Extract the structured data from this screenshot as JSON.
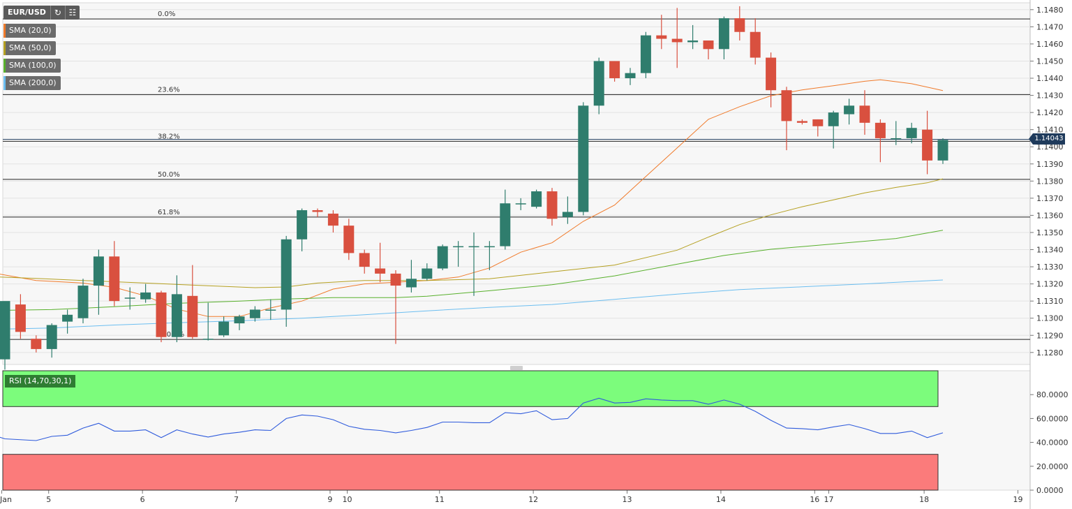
{
  "symbol": "EUR/USD",
  "toolbar": {
    "refresh_icon": "refresh-icon",
    "calendar_icon": "calendar-icon"
  },
  "indicators": [
    {
      "label": "SMA (20,0)",
      "color": "#f07a2a"
    },
    {
      "label": "SMA (50,0)",
      "color": "#b5a021"
    },
    {
      "label": "SMA (100,0)",
      "color": "#58b02c"
    },
    {
      "label": "SMA (200,0)",
      "color": "#6cbef0"
    }
  ],
  "current_price": "1.14043",
  "colors": {
    "up": "#2f7d6d",
    "down": "#d9503f",
    "rsi": "#2f5bdc",
    "overbought": "#7cfc7c",
    "oversold": "#fb7b7b"
  },
  "chart_data": [
    {
      "type": "candlestick",
      "ylim": [
        1.1273,
        1.1484
      ],
      "y_ticks": [
        "1.1480",
        "1.1470",
        "1.1460",
        "1.1450",
        "1.1440",
        "1.1430",
        "1.1420",
        "1.1410",
        "1.1400",
        "1.1390",
        "1.1380",
        "1.1370",
        "1.1360",
        "1.1350",
        "1.1340",
        "1.1330",
        "1.1320",
        "1.1310",
        "1.1300",
        "1.1290",
        "1.1280"
      ],
      "x_ticks": [
        {
          "label": "Jan",
          "i": -0.2
        },
        {
          "label": "5",
          "i": 2.8
        },
        {
          "label": "6",
          "i": 8.8
        },
        {
          "label": "7",
          "i": 14.8
        },
        {
          "label": "9",
          "i": 20.8
        },
        {
          "label": "10",
          "i": 21.9
        },
        {
          "label": "11",
          "i": 27.8
        },
        {
          "label": "12",
          "i": 33.8
        },
        {
          "label": "13",
          "i": 39.8
        },
        {
          "label": "14",
          "i": 45.8
        },
        {
          "label": "16",
          "i": 51.8
        },
        {
          "label": "17",
          "i": 52.7
        },
        {
          "label": "18",
          "i": 58.8
        },
        {
          "label": "19",
          "i": 64.8
        }
      ],
      "candles": [
        [
          1.1276,
          1.131,
          1.127,
          1.1308
        ],
        [
          1.1308,
          1.1292,
          1.1288,
          1.1314
        ],
        [
          1.1288,
          1.1282,
          1.128,
          1.129
        ],
        [
          1.1282,
          1.1296,
          1.1277,
          1.1297
        ],
        [
          1.1298,
          1.1302,
          1.1291,
          1.1305
        ],
        [
          1.13,
          1.1319,
          1.1297,
          1.1323
        ],
        [
          1.1319,
          1.1336,
          1.1302,
          1.134
        ],
        [
          1.1336,
          1.131,
          1.1307,
          1.1345
        ],
        [
          1.1312,
          1.1312,
          1.1305,
          1.1318
        ],
        [
          1.1311,
          1.1315,
          1.1309,
          1.132
        ],
        [
          1.1315,
          1.1289,
          1.1286,
          1.1316
        ],
        [
          1.1289,
          1.1314,
          1.1286,
          1.1325
        ],
        [
          1.1313,
          1.1289,
          1.1288,
          1.1331
        ],
        [
          1.1288,
          1.1288,
          1.1287,
          1.1309
        ],
        [
          1.129,
          1.1298,
          1.1289,
          1.1301
        ],
        [
          1.1297,
          1.1301,
          1.1293,
          1.1302
        ],
        [
          1.13,
          1.1305,
          1.1298,
          1.1307
        ],
        [
          1.1305,
          1.1305,
          1.1299,
          1.1311
        ],
        [
          1.1305,
          1.1346,
          1.1295,
          1.1348
        ],
        [
          1.1346,
          1.1363,
          1.1339,
          1.1364
        ],
        [
          1.1363,
          1.1362,
          1.1359,
          1.1364
        ],
        [
          1.1361,
          1.1354,
          1.135,
          1.1363
        ],
        [
          1.1354,
          1.1338,
          1.1334,
          1.1358
        ],
        [
          1.1338,
          1.133,
          1.1326,
          1.134
        ],
        [
          1.1329,
          1.1326,
          1.1321,
          1.1344
        ],
        [
          1.1326,
          1.1319,
          1.1285,
          1.1328
        ],
        [
          1.1318,
          1.1323,
          1.1315,
          1.1334
        ],
        [
          1.1323,
          1.1329,
          1.1322,
          1.1332
        ],
        [
          1.1329,
          1.1342,
          1.1328,
          1.1343
        ],
        [
          1.1342,
          1.1342,
          1.133,
          1.1345
        ],
        [
          1.1342,
          1.1342,
          1.1313,
          1.135
        ],
        [
          1.1342,
          1.1342,
          1.1328,
          1.1345
        ],
        [
          1.1342,
          1.1367,
          1.134,
          1.1375
        ],
        [
          1.1367,
          1.1367,
          1.1363,
          1.137
        ],
        [
          1.1365,
          1.1374,
          1.1364,
          1.1375
        ],
        [
          1.1374,
          1.1358,
          1.1354,
          1.1376
        ],
        [
          1.1359,
          1.1362,
          1.1355,
          1.1371
        ],
        [
          1.1362,
          1.1424,
          1.136,
          1.1426
        ],
        [
          1.1424,
          1.145,
          1.1419,
          1.1452
        ],
        [
          1.145,
          1.144,
          1.1438,
          1.145
        ],
        [
          1.144,
          1.1443,
          1.1436,
          1.1446
        ],
        [
          1.1443,
          1.1465,
          1.144,
          1.1467
        ],
        [
          1.1465,
          1.1463,
          1.1457,
          1.1477
        ],
        [
          1.1463,
          1.1461,
          1.1446,
          1.1481
        ],
        [
          1.1461,
          1.1462,
          1.1457,
          1.1471
        ],
        [
          1.1462,
          1.1457,
          1.1451,
          1.1462
        ],
        [
          1.1457,
          1.1475,
          1.1451,
          1.1476
        ],
        [
          1.1475,
          1.1467,
          1.1462,
          1.1482
        ],
        [
          1.1467,
          1.1452,
          1.1448,
          1.1475
        ],
        [
          1.1452,
          1.1433,
          1.1423,
          1.1455
        ],
        [
          1.1433,
          1.1415,
          1.1398,
          1.1435
        ],
        [
          1.1415,
          1.1414,
          1.1413,
          1.1416
        ],
        [
          1.1416,
          1.1412,
          1.1406,
          1.1416
        ],
        [
          1.1412,
          1.142,
          1.1399,
          1.1421
        ],
        [
          1.1419,
          1.1424,
          1.1413,
          1.1428
        ],
        [
          1.1424,
          1.1414,
          1.1407,
          1.1433
        ],
        [
          1.1414,
          1.1405,
          1.1391,
          1.1416
        ],
        [
          1.1405,
          1.1405,
          1.1401,
          1.1415
        ],
        [
          1.1405,
          1.1411,
          1.1402,
          1.1414
        ],
        [
          1.141,
          1.1392,
          1.1384,
          1.1421
        ],
        [
          1.1392,
          1.1404,
          1.139,
          1.1405
        ]
      ],
      "sma": [
        {
          "name": "SMA (20,0)",
          "color": "#f07a2a",
          "points": [
            [
              -1,
              1.13268
            ],
            [
              2,
              1.1322
            ],
            [
              5,
              1.13205
            ],
            [
              7,
              1.1318
            ],
            [
              9,
              1.1313
            ],
            [
              11,
              1.13053
            ],
            [
              13,
              1.1301
            ],
            [
              15,
              1.1301
            ],
            [
              17,
              1.1306
            ],
            [
              19,
              1.131
            ],
            [
              21,
              1.1317
            ],
            [
              23,
              1.132
            ],
            [
              25,
              1.1321
            ],
            [
              27,
              1.1322
            ],
            [
              29,
              1.1324
            ],
            [
              31,
              1.13293
            ],
            [
              33,
              1.13385
            ],
            [
              35,
              1.1344
            ],
            [
              37,
              1.13565
            ],
            [
              39,
              1.1366
            ],
            [
              41,
              1.13827
            ],
            [
              43,
              1.13993
            ],
            [
              45,
              1.1416
            ],
            [
              47,
              1.14234
            ],
            [
              49,
              1.14298
            ],
            [
              51,
              1.14332
            ],
            [
              53,
              1.14356
            ],
            [
              55,
              1.14382
            ],
            [
              56,
              1.14391
            ],
            [
              58,
              1.14368
            ],
            [
              60,
              1.14328
            ]
          ]
        },
        {
          "name": "SMA (50,0)",
          "color": "#b5a021",
          "points": [
            [
              -1,
              1.13243
            ],
            [
              2,
              1.13232
            ],
            [
              5,
              1.1322
            ],
            [
              9,
              1.13205
            ],
            [
              13,
              1.13189
            ],
            [
              16,
              1.13178
            ],
            [
              18,
              1.13182
            ],
            [
              20,
              1.13205
            ],
            [
              23,
              1.1322
            ],
            [
              27,
              1.1322
            ],
            [
              31,
              1.1323
            ],
            [
              35,
              1.1327
            ],
            [
              39,
              1.1331
            ],
            [
              43,
              1.13397
            ],
            [
              45,
              1.13473
            ],
            [
              47,
              1.13546
            ],
            [
              49,
              1.13603
            ],
            [
              51,
              1.1365
            ],
            [
              53,
              1.1369
            ],
            [
              55,
              1.13731
            ],
            [
              57,
              1.13763
            ],
            [
              59,
              1.1379
            ],
            [
              60,
              1.13813
            ]
          ]
        },
        {
          "name": "SMA (100,0)",
          "color": "#58b02c",
          "points": [
            [
              -1,
              1.13045
            ],
            [
              3,
              1.1305
            ],
            [
              7,
              1.13067
            ],
            [
              11,
              1.13087
            ],
            [
              15,
              1.131
            ],
            [
              18,
              1.13112
            ],
            [
              21,
              1.1312
            ],
            [
              25,
              1.1312
            ],
            [
              27,
              1.13128
            ],
            [
              31,
              1.1316
            ],
            [
              35,
              1.13195
            ],
            [
              39,
              1.13247
            ],
            [
              43,
              1.13315
            ],
            [
              46,
              1.13366
            ],
            [
              49,
              1.13402
            ],
            [
              53,
              1.13433
            ],
            [
              57,
              1.13465
            ],
            [
              60,
              1.13513
            ]
          ]
        },
        {
          "name": "SMA (200,0)",
          "color": "#6cbef0",
          "points": [
            [
              -1,
              1.12935
            ],
            [
              3,
              1.12943
            ],
            [
              7,
              1.1296
            ],
            [
              11,
              1.12973
            ],
            [
              15,
              1.12985
            ],
            [
              19,
              1.13
            ],
            [
              23,
              1.1302
            ],
            [
              27,
              1.13043
            ],
            [
              31,
              1.13063
            ],
            [
              35,
              1.1308
            ],
            [
              39,
              1.1311
            ],
            [
              43,
              1.1314
            ],
            [
              47,
              1.13167
            ],
            [
              51,
              1.13183
            ],
            [
              55,
              1.132
            ],
            [
              60,
              1.13223
            ]
          ]
        }
      ],
      "fibonacci": [
        {
          "label": "0.0%",
          "price": 1.14746
        },
        {
          "label": "23.6%",
          "price": 1.14305
        },
        {
          "label": "38.2%",
          "price": 1.14032
        },
        {
          "label": "50.0%",
          "price": 1.1381
        },
        {
          "label": "61.8%",
          "price": 1.1359
        },
        {
          "label": "100.0%",
          "price": 1.12876
        }
      ]
    },
    {
      "type": "line",
      "title": "RSI (14,70,30,1)",
      "ylim": [
        0,
        100
      ],
      "y_ticks": [
        "80.0000",
        "60.0000",
        "40.0000",
        "20.0000",
        "0.0000"
      ],
      "overbought": 70,
      "oversold": 30,
      "points": [
        [
          -1,
          47
        ],
        [
          0,
          43
        ],
        [
          2,
          41.5
        ],
        [
          3,
          45
        ],
        [
          4,
          46
        ],
        [
          5,
          52
        ],
        [
          6,
          56
        ],
        [
          7,
          49.5
        ],
        [
          8,
          49.5
        ],
        [
          9,
          50.5
        ],
        [
          10,
          44
        ],
        [
          11,
          50.5
        ],
        [
          12,
          47
        ],
        [
          13,
          44.5
        ],
        [
          14,
          47
        ],
        [
          15,
          48.5
        ],
        [
          16,
          50.5
        ],
        [
          17,
          50
        ],
        [
          18,
          60
        ],
        [
          19,
          63
        ],
        [
          20,
          62
        ],
        [
          21,
          59
        ],
        [
          22,
          53.5
        ],
        [
          23,
          51
        ],
        [
          24,
          50
        ],
        [
          25,
          48
        ],
        [
          26,
          50
        ],
        [
          27,
          52.5
        ],
        [
          28,
          57
        ],
        [
          29,
          57
        ],
        [
          30,
          56.5
        ],
        [
          31,
          56.5
        ],
        [
          32,
          65
        ],
        [
          33,
          64
        ],
        [
          34,
          66.5
        ],
        [
          35,
          59
        ],
        [
          36,
          60
        ],
        [
          37,
          73
        ],
        [
          38,
          77
        ],
        [
          39,
          73
        ],
        [
          40,
          73.5
        ],
        [
          41,
          76.5
        ],
        [
          42,
          75.5
        ],
        [
          43,
          75
        ],
        [
          44,
          75
        ],
        [
          45,
          72
        ],
        [
          46,
          75.5
        ],
        [
          47,
          72
        ],
        [
          48,
          66
        ],
        [
          49,
          58.5
        ],
        [
          50,
          52
        ],
        [
          51,
          51.5
        ],
        [
          52,
          50.5
        ],
        [
          53,
          53
        ],
        [
          54,
          55
        ],
        [
          55,
          51.5
        ],
        [
          56,
          47.5
        ],
        [
          57,
          47.5
        ],
        [
          58,
          49.5
        ],
        [
          59,
          44
        ],
        [
          60,
          48
        ]
      ]
    }
  ]
}
